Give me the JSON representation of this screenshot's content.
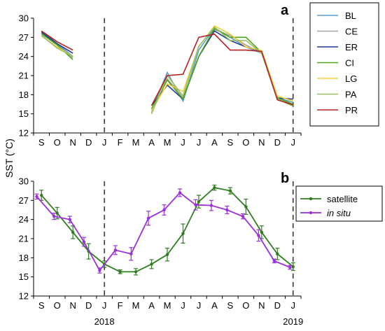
{
  "ylabel": "SST (°C)",
  "chart_data": [
    {
      "panel": "a",
      "type": "line",
      "xlabel": "",
      "ylabel": "SST (°C)",
      "x_tick_labels": [
        "S",
        "O",
        "N",
        "D",
        "J",
        "F",
        "M",
        "A",
        "M",
        "J",
        "J",
        "A",
        "S",
        "O",
        "N",
        "D",
        "J"
      ],
      "ylim": [
        12,
        30
      ],
      "yticks": [
        12,
        15,
        18,
        21,
        24,
        27,
        30
      ],
      "vertical_dashed_lines_at_month_index": [
        4,
        16
      ],
      "legend": {
        "placement": "top-right",
        "entries": [
          "BL",
          "CE",
          "ER",
          "CI",
          "LG",
          "PA",
          "PR"
        ]
      },
      "series": [
        {
          "name": "BL",
          "color": "#5b9bd5",
          "segments": [
            {
              "x": [
                0,
                1,
                2
              ],
              "y": [
                28.0,
                26.0,
                24.0
              ]
            },
            {
              "x": [
                7,
                8,
                9,
                10,
                11,
                12,
                13,
                14,
                15,
                16
              ],
              "y": [
                15.5,
                21.5,
                17.0,
                25.0,
                28.5,
                27.0,
                25.5,
                24.5,
                17.5,
                16.8
              ]
            }
          ]
        },
        {
          "name": "CE",
          "color": "#a5a5a5",
          "segments": [
            {
              "x": [
                0,
                1,
                2
              ],
              "y": [
                27.5,
                25.8,
                23.8
              ]
            },
            {
              "x": [
                7,
                8,
                9,
                10,
                11,
                12,
                13,
                14,
                15,
                16
              ],
              "y": [
                15.2,
                20.5,
                17.5,
                24.0,
                28.2,
                27.3,
                25.8,
                24.5,
                17.2,
                16.4
              ]
            }
          ]
        },
        {
          "name": "ER",
          "color": "#1f3a93",
          "segments": [
            {
              "x": [
                0,
                1,
                2
              ],
              "y": [
                27.8,
                26.0,
                24.5
              ]
            },
            {
              "x": [
                7,
                8,
                9,
                10,
                11,
                12,
                13,
                14,
                15,
                16
              ],
              "y": [
                16.3,
                19.5,
                17.3,
                24.0,
                28.0,
                26.5,
                25.5,
                24.8,
                17.5,
                17.3
              ]
            }
          ]
        },
        {
          "name": "CI",
          "color": "#4aa61b",
          "segments": [
            {
              "x": [
                0,
                1,
                2
              ],
              "y": [
                27.6,
                25.8,
                23.5
              ]
            },
            {
              "x": [
                7,
                8,
                9,
                10,
                11,
                12,
                13,
                14,
                15,
                16
              ],
              "y": [
                15.8,
                20.3,
                17.3,
                24.0,
                28.4,
                27.0,
                27.0,
                24.6,
                17.5,
                16.5
              ]
            }
          ]
        },
        {
          "name": "LG",
          "color": "#f2cf3c",
          "segments": [
            {
              "x": [
                0,
                1,
                2
              ],
              "y": [
                27.2,
                25.5,
                24.0
              ]
            },
            {
              "x": [
                7,
                8,
                9,
                10,
                11,
                12,
                13,
                14,
                15,
                16
              ],
              "y": [
                15.5,
                19.7,
                18.5,
                25.5,
                28.8,
                27.5,
                25.5,
                24.9,
                17.8,
                17.0
              ]
            }
          ]
        },
        {
          "name": "PA",
          "color": "#9abf60",
          "segments": [
            {
              "x": [
                0,
                1,
                2
              ],
              "y": [
                27.3,
                25.3,
                24.0
              ]
            },
            {
              "x": [
                7,
                8,
                9,
                10,
                11,
                12,
                13,
                14,
                15,
                16
              ],
              "y": [
                15.0,
                21.0,
                17.8,
                25.6,
                28.6,
                26.5,
                26.5,
                24.5,
                17.3,
                16.2
              ]
            }
          ]
        },
        {
          "name": "PR",
          "color": "#b22222",
          "segments": [
            {
              "x": [
                0,
                1,
                2
              ],
              "y": [
                28.0,
                26.3,
                25.0
              ]
            },
            {
              "x": [
                7,
                8,
                9,
                10,
                11,
                12,
                13,
                14,
                15,
                16
              ],
              "y": [
                16.3,
                21.0,
                21.2,
                27.0,
                27.5,
                25.0,
                25.0,
                24.8,
                17.2,
                16.4
              ]
            }
          ]
        }
      ]
    },
    {
      "panel": "b",
      "type": "line",
      "xlabel": "",
      "ylabel": "SST (°C)",
      "x_tick_labels": [
        "S",
        "O",
        "N",
        "D",
        "J",
        "F",
        "M",
        "A",
        "M",
        "J",
        "J",
        "A",
        "S",
        "O",
        "N",
        "D",
        "J"
      ],
      "year_labels": [
        {
          "label": "2018",
          "at_month_index": 4
        },
        {
          "label": "2019",
          "at_month_index": 16
        }
      ],
      "ylim": [
        12,
        30
      ],
      "yticks": [
        12,
        15,
        18,
        21,
        24,
        27,
        30
      ],
      "vertical_dashed_lines_at_month_index": [
        4,
        16
      ],
      "legend": {
        "placement": "top-right",
        "entries": [
          {
            "name": "satellite",
            "italic": false
          },
          {
            "name": "in situ",
            "italic": true
          }
        ]
      },
      "series": [
        {
          "name": "satellite",
          "color": "#2e7d1f",
          "x": [
            0.5,
            1.5,
            2.5,
            3.5,
            4.5,
            5.5,
            6.5,
            7.5,
            8.5,
            9.5,
            10.5,
            11.5,
            12.5,
            13.5,
            14.5,
            15.5,
            16.5
          ],
          "y": [
            27.8,
            25.0,
            22.0,
            19.0,
            17.0,
            15.8,
            15.8,
            17.0,
            18.5,
            21.8,
            26.8,
            29.0,
            28.5,
            26.0,
            22.0,
            18.6,
            16.6
          ],
          "err": [
            0.8,
            0.9,
            1.0,
            1.2,
            0.5,
            0.3,
            0.5,
            0.7,
            1.0,
            1.5,
            1.0,
            0.4,
            0.5,
            1.2,
            1.0,
            0.9,
            0.6
          ]
        },
        {
          "name": "in situ",
          "color": "#9b30d9",
          "x": [
            0.2,
            1.3,
            2.3,
            3.2,
            4.2,
            5.2,
            6.2,
            7.3,
            8.3,
            9.3,
            10.3,
            11.3,
            12.3,
            13.3,
            14.3,
            15.3,
            16.3
          ],
          "y": [
            27.6,
            24.5,
            24.0,
            20.5,
            16.0,
            19.2,
            18.6,
            24.2,
            25.5,
            28.2,
            26.3,
            26.2,
            25.5,
            24.5,
            21.5,
            17.5,
            16.5
          ],
          "err": [
            0.4,
            0.5,
            0.5,
            0.7,
            0.4,
            0.7,
            1.0,
            1.1,
            0.8,
            0.6,
            0.8,
            0.8,
            0.6,
            0.4,
            0.9,
            0.3,
            0.3
          ]
        }
      ]
    }
  ],
  "colors": {
    "axis": "#000000",
    "grid": "none",
    "legend_border": "#000000"
  }
}
